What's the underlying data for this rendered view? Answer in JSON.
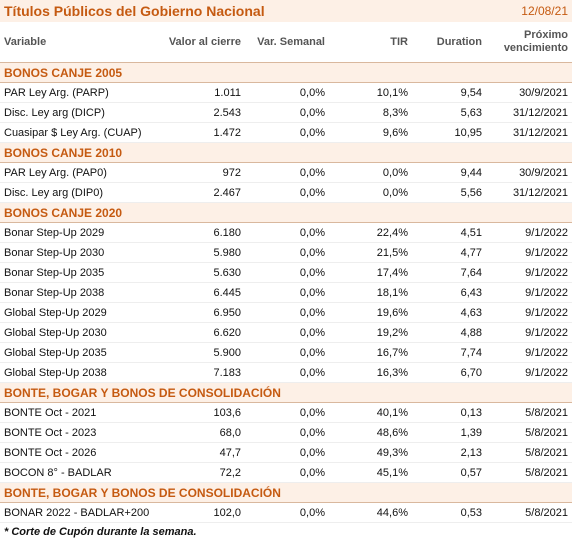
{
  "header": {
    "title": "Títulos Públicos del Gobierno Nacional",
    "date": "12/08/21"
  },
  "columns": [
    "Variable",
    "Valor al cierre",
    "Var. Semanal",
    "TIR",
    "Duration",
    "Próximo vencimiento"
  ],
  "sections": [
    {
      "title": "BONOS CANJE 2005",
      "rows": [
        [
          "PAR Ley Arg. (PARP)",
          "1.011",
          "0,0%",
          "10,1%",
          "9,54",
          "30/9/2021"
        ],
        [
          "Disc. Ley arg (DICP)",
          "2.543",
          "0,0%",
          "8,3%",
          "5,63",
          "31/12/2021"
        ],
        [
          "Cuasipar $ Ley Arg. (CUAP)",
          "1.472",
          "0,0%",
          "9,6%",
          "10,95",
          "31/12/2021"
        ]
      ]
    },
    {
      "title": "BONOS CANJE 2010",
      "rows": [
        [
          "PAR Ley Arg. (PAP0)",
          "972",
          "0,0%",
          "0,0%",
          "9,44",
          "30/9/2021"
        ],
        [
          "Disc. Ley arg (DIP0)",
          "2.467",
          "0,0%",
          "0,0%",
          "5,56",
          "31/12/2021"
        ]
      ]
    },
    {
      "title": "BONOS CANJE 2020",
      "rows": [
        [
          "Bonar Step-Up 2029",
          "6.180",
          "0,0%",
          "22,4%",
          "4,51",
          "9/1/2022"
        ],
        [
          "Bonar Step-Up 2030",
          "5.980",
          "0,0%",
          "21,5%",
          "4,77",
          "9/1/2022"
        ],
        [
          "Bonar Step-Up 2035",
          "5.630",
          "0,0%",
          "17,4%",
          "7,64",
          "9/1/2022"
        ],
        [
          "Bonar Step-Up 2038",
          "6.445",
          "0,0%",
          "18,1%",
          "6,43",
          "9/1/2022"
        ],
        [
          "Global Step-Up 2029",
          "6.950",
          "0,0%",
          "19,6%",
          "4,63",
          "9/1/2022"
        ],
        [
          "Global Step-Up 2030",
          "6.620",
          "0,0%",
          "19,2%",
          "4,88",
          "9/1/2022"
        ],
        [
          "Global Step-Up 2035",
          "5.900",
          "0,0%",
          "16,7%",
          "7,74",
          "9/1/2022"
        ],
        [
          "Global Step-Up 2038",
          "7.183",
          "0,0%",
          "16,3%",
          "6,70",
          "9/1/2022"
        ]
      ]
    },
    {
      "title": "BONTE, BOGAR Y BONOS DE CONSOLIDACIÓN",
      "rows": [
        [
          "BONTE Oct - 2021",
          "103,6",
          "0,0%",
          "40,1%",
          "0,13",
          "5/8/2021"
        ],
        [
          "BONTE Oct - 2023",
          "68,0",
          "0,0%",
          "48,6%",
          "1,39",
          "5/8/2021"
        ],
        [
          "BONTE Oct - 2026",
          "47,7",
          "0,0%",
          "49,3%",
          "2,13",
          "5/8/2021"
        ],
        [
          "BOCON 8° - BADLAR",
          "72,2",
          "0,0%",
          "45,1%",
          "0,57",
          "5/8/2021"
        ]
      ]
    },
    {
      "title": "BONTE, BOGAR Y BONOS DE CONSOLIDACIÓN",
      "rows": [
        [
          "BONAR 2022 - BADLAR+200",
          "102,0",
          "0,0%",
          "44,6%",
          "0,53",
          "5/8/2021"
        ]
      ]
    }
  ],
  "footnote": "* Corte de Cupón durante la semana."
}
